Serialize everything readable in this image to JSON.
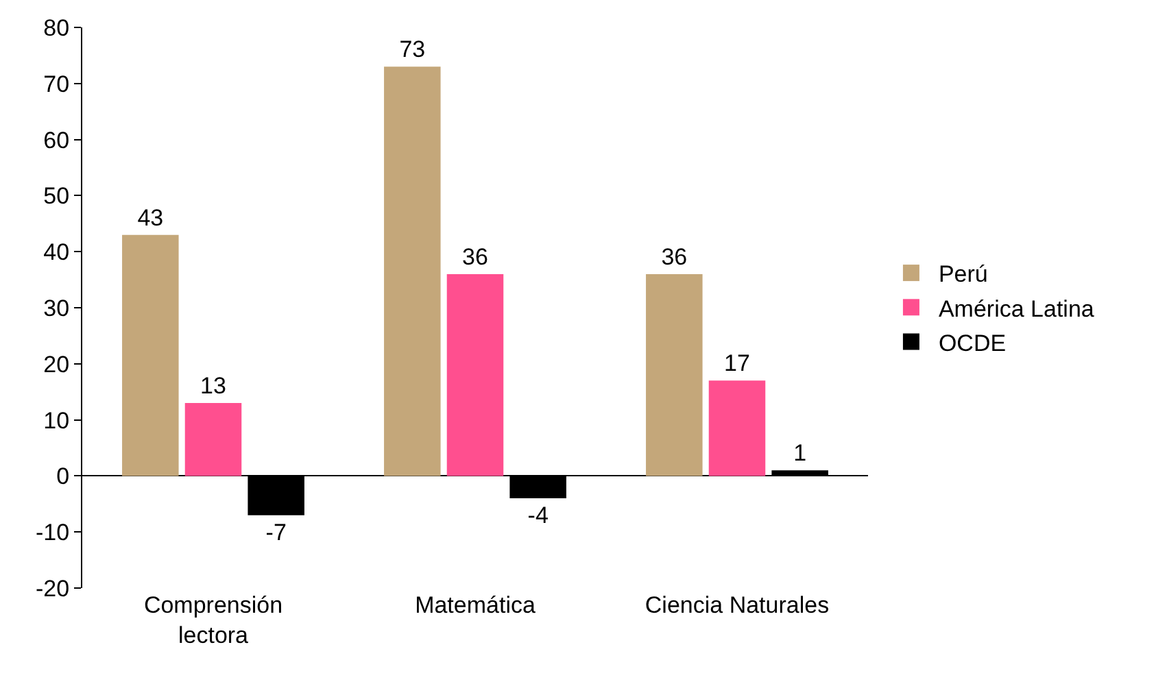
{
  "chart_data": {
    "type": "bar",
    "categories": [
      "Comprensión lectora",
      "Matemática",
      "Ciencia Naturales"
    ],
    "series": [
      {
        "name": "Perú",
        "color": "#c4a77a",
        "values": [
          43,
          73,
          36
        ]
      },
      {
        "name": "América Latina",
        "color": "#ff4f8f",
        "values": [
          13,
          36,
          17
        ]
      },
      {
        "name": "OCDE",
        "color": "#000000",
        "values": [
          -7,
          -4,
          1
        ]
      }
    ],
    "ylim": [
      -20,
      80
    ],
    "yticks": [
      -20,
      -10,
      0,
      10,
      20,
      30,
      40,
      50,
      60,
      70,
      80
    ],
    "legend": "right",
    "data_labels": true
  }
}
